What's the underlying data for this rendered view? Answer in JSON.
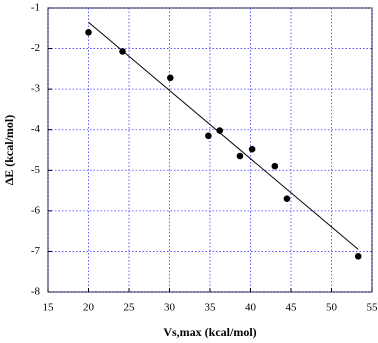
{
  "chart_data": {
    "type": "scatter",
    "x_label": "Vs,max (kcal/mol)",
    "y_label": "ΔE (kcal/mol)",
    "xlim": [
      15,
      55
    ],
    "xticks": [
      15,
      20,
      25,
      30,
      35,
      40,
      45,
      50,
      55
    ],
    "ylim": [
      -8,
      -1
    ],
    "yticks": [
      -1,
      -2,
      -3,
      -4,
      -5,
      -6,
      -7,
      -8
    ],
    "grid": true,
    "grid_color": "#3a3aff",
    "point_color": "#000000",
    "x": [
      20,
      24.2,
      30.1,
      34.8,
      36.2,
      38.7,
      40.2,
      43,
      44.5,
      53.3
    ],
    "y": [
      -1.6,
      -2.07,
      -2.72,
      -4.15,
      -4.02,
      -4.65,
      -4.48,
      -4.9,
      -5.7,
      -7.12
    ],
    "fit": {
      "color": "#000000",
      "x": [
        20,
        53.3
      ],
      "y": [
        -1.35,
        -6.95
      ]
    }
  }
}
